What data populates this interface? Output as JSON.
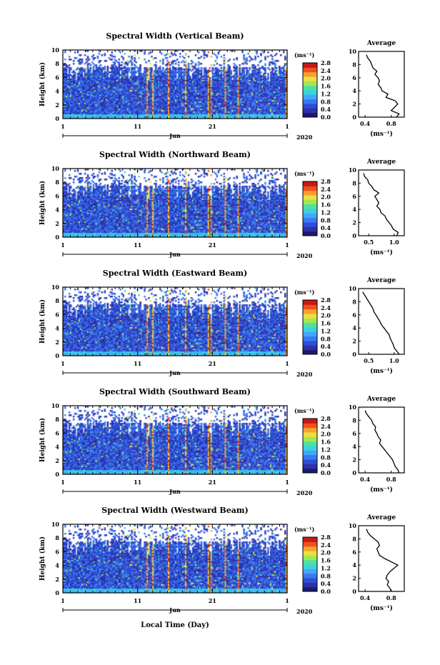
{
  "figure": {
    "xlabel": "Local Time (Day)",
    "month_label": "Jun",
    "year_label": "2020",
    "ylabel": "Height (km)",
    "cbar_unit": "(ms⁻¹)",
    "avg_title": "Average",
    "avg_xlabel": "(ms⁻¹)",
    "colorscale": [
      "#1a1a6e",
      "#3030a8",
      "#2c4fd6",
      "#3a78f0",
      "#40a8f8",
      "#3cd0e0",
      "#50e0a0",
      "#a0e850",
      "#e8e040",
      "#f8a030",
      "#f05020",
      "#c81818"
    ]
  },
  "chart_data": [
    {
      "type": "heatmap",
      "title": "Spectral Width (Vertical Beam)",
      "xlim": [
        1,
        31
      ],
      "x_ticks": [
        "1",
        "11",
        "21",
        "1"
      ],
      "ylim": [
        0,
        10
      ],
      "y_ticks": [
        "0",
        "2",
        "4",
        "6",
        "8",
        "10"
      ],
      "cbar_ticks": [
        "0.0",
        "0.4",
        "0.8",
        "1.2",
        "1.6",
        "2.0",
        "2.4",
        "2.8"
      ],
      "average": {
        "title": "Average",
        "xlim": [
          0.3,
          1.0
        ],
        "x_ticks": [
          "0.4",
          "0.8"
        ],
        "height": [
          0,
          0.5,
          1,
          1.5,
          2,
          2.5,
          3,
          3.5,
          4,
          4.5,
          5,
          5.5,
          6,
          6.5,
          7,
          7.5,
          8,
          8.5,
          9,
          9.5
        ],
        "values": [
          0.88,
          0.92,
          0.8,
          0.85,
          0.9,
          0.86,
          0.72,
          0.75,
          0.66,
          0.64,
          0.6,
          0.62,
          0.6,
          0.55,
          0.58,
          0.52,
          0.5,
          0.48,
          0.44,
          0.42
        ]
      }
    },
    {
      "type": "heatmap",
      "title": "Spectral Width (Northward Beam)",
      "xlim": [
        1,
        31
      ],
      "x_ticks": [
        "1",
        "11",
        "21",
        "1"
      ],
      "ylim": [
        0,
        10
      ],
      "y_ticks": [
        "0",
        "2",
        "4",
        "6",
        "8",
        "10"
      ],
      "cbar_ticks": [
        "0.0",
        "0.4",
        "0.8",
        "1.2",
        "1.6",
        "2.0",
        "2.4",
        "2.8"
      ],
      "average": {
        "title": "Average",
        "xlim": [
          0.3,
          1.2
        ],
        "x_ticks": [
          "0.5",
          "1.0"
        ],
        "height": [
          0,
          0.5,
          1,
          1.5,
          2,
          2.5,
          3,
          3.5,
          4,
          4.5,
          5,
          5.5,
          6,
          6.5,
          7,
          7.5,
          8,
          8.5,
          9,
          9.5
        ],
        "values": [
          1.05,
          1.08,
          0.98,
          0.95,
          0.9,
          0.85,
          0.82,
          0.74,
          0.72,
          0.66,
          0.7,
          0.66,
          0.62,
          0.7,
          0.6,
          0.56,
          0.5,
          0.48,
          0.42,
          0.4
        ]
      }
    },
    {
      "type": "heatmap",
      "title": "Spectral Width (Eastward Beam)",
      "xlim": [
        1,
        31
      ],
      "x_ticks": [
        "1",
        "11",
        "21",
        "1"
      ],
      "ylim": [
        0,
        10
      ],
      "y_ticks": [
        "0",
        "2",
        "4",
        "6",
        "8",
        "10"
      ],
      "cbar_ticks": [
        "0.0",
        "0.4",
        "0.8",
        "1.2",
        "1.6",
        "2.0",
        "2.4",
        "2.8"
      ],
      "average": {
        "title": "Average",
        "xlim": [
          0.3,
          1.2
        ],
        "x_ticks": [
          "0.5",
          "1.0"
        ],
        "height": [
          0,
          0.5,
          1,
          1.5,
          2,
          2.5,
          3,
          3.5,
          4,
          4.5,
          5,
          5.5,
          6,
          6.5,
          7,
          7.5,
          8,
          8.5,
          9,
          9.5
        ],
        "values": [
          1.1,
          1.05,
          1.0,
          0.98,
          0.95,
          0.92,
          0.9,
          0.85,
          0.8,
          0.75,
          0.72,
          0.68,
          0.64,
          0.6,
          0.58,
          0.54,
          0.5,
          0.46,
          0.42,
          0.38
        ]
      }
    },
    {
      "type": "heatmap",
      "title": "Spectral Width (Southward Beam)",
      "xlim": [
        1,
        31
      ],
      "x_ticks": [
        "1",
        "11",
        "21",
        "1"
      ],
      "ylim": [
        0,
        10
      ],
      "y_ticks": [
        "0",
        "2",
        "4",
        "6",
        "8",
        "10"
      ],
      "cbar_ticks": [
        "0.0",
        "0.4",
        "0.8",
        "1.2",
        "1.6",
        "2.0",
        "2.4",
        "2.8"
      ],
      "average": {
        "title": "Average",
        "xlim": [
          0.3,
          1.0
        ],
        "x_ticks": [
          "0.4",
          "0.8"
        ],
        "height": [
          0,
          0.5,
          1,
          1.5,
          2,
          2.5,
          3,
          3.5,
          4,
          4.5,
          5,
          5.5,
          6,
          6.5,
          7,
          7.5,
          8,
          8.5,
          9,
          9.5
        ],
        "values": [
          0.92,
          0.9,
          0.86,
          0.84,
          0.82,
          0.78,
          0.74,
          0.7,
          0.66,
          0.62,
          0.64,
          0.6,
          0.58,
          0.55,
          0.56,
          0.52,
          0.5,
          0.46,
          0.42,
          0.4
        ]
      }
    },
    {
      "type": "heatmap",
      "title": "Spectral Width (Westward Beam)",
      "xlim": [
        1,
        31
      ],
      "x_ticks": [
        "1",
        "11",
        "21",
        "1"
      ],
      "ylim": [
        0,
        10
      ],
      "y_ticks": [
        "0",
        "2",
        "4",
        "6",
        "8",
        "10"
      ],
      "cbar_ticks": [
        "0.0",
        "0.4",
        "0.8",
        "1.2",
        "1.6",
        "2.0",
        "2.4",
        "2.8"
      ],
      "average": {
        "title": "Average",
        "xlim": [
          0.3,
          1.0
        ],
        "x_ticks": [
          "0.4",
          "0.8"
        ],
        "height": [
          0,
          0.5,
          1,
          1.5,
          2,
          2.5,
          3,
          3.5,
          4,
          4.5,
          5,
          5.5,
          6,
          6.5,
          7,
          7.5,
          8,
          8.5,
          9,
          9.5
        ],
        "values": [
          0.8,
          0.78,
          0.74,
          0.76,
          0.72,
          0.74,
          0.78,
          0.84,
          0.9,
          0.8,
          0.7,
          0.62,
          0.6,
          0.58,
          0.62,
          0.6,
          0.54,
          0.48,
          0.44,
          0.42
        ]
      }
    }
  ]
}
